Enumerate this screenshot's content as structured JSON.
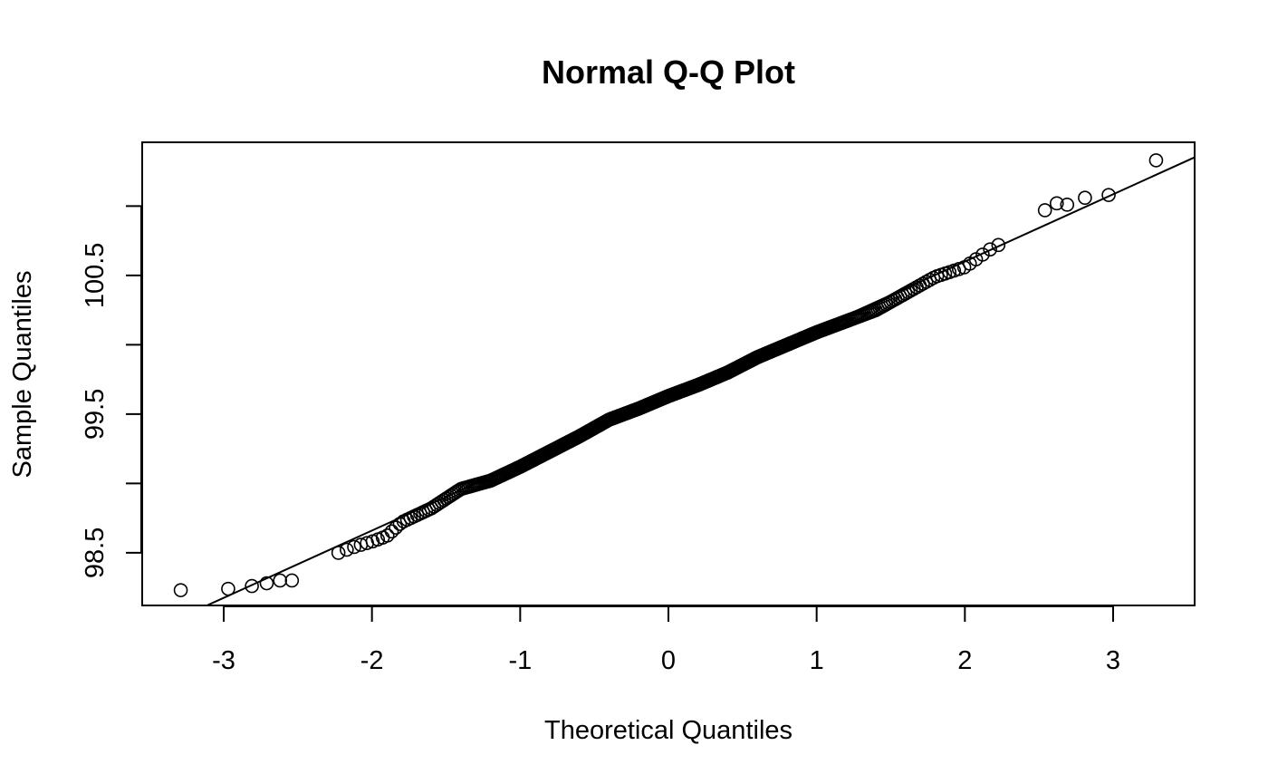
{
  "chart_data": {
    "type": "scatter",
    "title": "Normal Q-Q Plot",
    "xlabel": "Theoretical Quantiles",
    "ylabel": "Sample Quantiles",
    "xlim": [
      -3.55,
      3.55
    ],
    "ylim": [
      98.12,
      101.46
    ],
    "x_ticks": [
      -3,
      -2,
      -1,
      0,
      1,
      2,
      3
    ],
    "x_tick_labels": [
      "-3",
      "-2",
      "-1",
      "0",
      "1",
      "2",
      "3"
    ],
    "y_ticks": [
      98.5,
      99.0,
      99.5,
      100.0,
      100.5,
      101.0
    ],
    "y_tick_labels": [
      "98.5",
      "",
      "99.5",
      "",
      "100.5",
      ""
    ],
    "grid": false,
    "reference_line": {
      "intercept": 99.63,
      "slope": 0.485
    },
    "n_points": 500,
    "tail_points": [
      [
        -3.29,
        98.23
      ],
      [
        -2.97,
        98.24
      ],
      [
        -2.81,
        98.26
      ],
      [
        -2.71,
        98.28
      ],
      [
        -2.62,
        98.3
      ],
      [
        -2.54,
        98.3
      ],
      [
        2.54,
        100.97
      ],
      [
        2.62,
        101.02
      ],
      [
        2.69,
        101.01
      ],
      [
        2.81,
        101.06
      ],
      [
        2.97,
        101.08
      ],
      [
        3.29,
        101.33
      ]
    ],
    "quantile_curve": [
      [
        -2.5,
        98.43
      ],
      [
        -2.3,
        98.47
      ],
      [
        -2.1,
        98.55
      ],
      [
        -2.0,
        98.58
      ],
      [
        -1.9,
        98.62
      ],
      [
        -1.8,
        98.72
      ],
      [
        -1.6,
        98.82
      ],
      [
        -1.4,
        98.96
      ],
      [
        -1.2,
        99.02
      ],
      [
        -1.0,
        99.12
      ],
      [
        -0.8,
        99.23
      ],
      [
        -0.6,
        99.34
      ],
      [
        -0.4,
        99.46
      ],
      [
        -0.2,
        99.54
      ],
      [
        0.0,
        99.63
      ],
      [
        0.2,
        99.71
      ],
      [
        0.4,
        99.8
      ],
      [
        0.6,
        99.91
      ],
      [
        0.8,
        100.0
      ],
      [
        1.0,
        100.09
      ],
      [
        1.2,
        100.17
      ],
      [
        1.4,
        100.25
      ],
      [
        1.6,
        100.37
      ],
      [
        1.8,
        100.49
      ],
      [
        2.0,
        100.56
      ],
      [
        2.2,
        100.71
      ],
      [
        2.4,
        100.78
      ],
      [
        2.5,
        100.8
      ]
    ]
  }
}
